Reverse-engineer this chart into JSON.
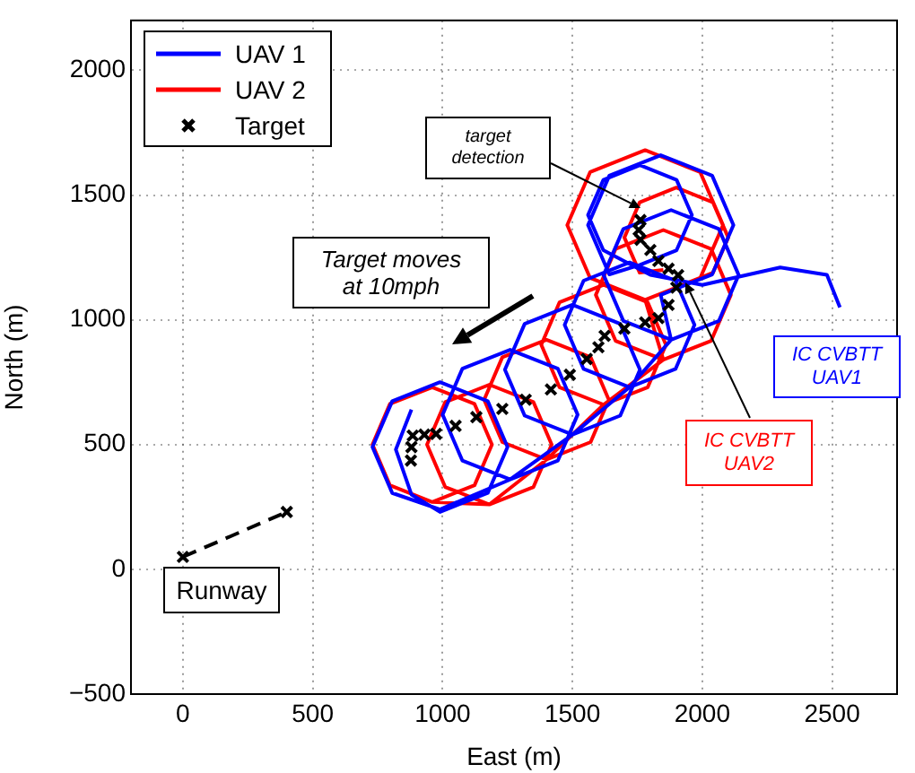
{
  "chart_data": {
    "type": "line",
    "xlabel": "East (m)",
    "ylabel": "North (m)",
    "xlim": [
      -200,
      2750
    ],
    "ylim": [
      -500,
      2200
    ],
    "xticks": [
      0,
      500,
      1000,
      1500,
      2000,
      2500
    ],
    "yticks": [
      -500,
      0,
      500,
      1000,
      1500,
      2000
    ],
    "grid": true,
    "legend": "top left",
    "series": [
      {
        "name": "UAV 1",
        "color": "#0000ff",
        "marker": "none",
        "line_style": "solid",
        "x": [
          880,
          820,
          880,
          990,
          1174,
          1250,
          1174,
          990,
          806,
          730,
          806,
          990,
          1260,
          1444,
          1520,
          1444,
          1260,
          1076,
          1000,
          1076,
          1260,
          1500,
          1684,
          1760,
          1684,
          1500,
          1316,
          1240,
          1316,
          1500,
          1720,
          1897,
          1970,
          1897,
          1720,
          1543,
          1470,
          1543,
          1720,
          1880,
          2064,
          2140,
          2064,
          1880,
          1696,
          1620,
          1696,
          1880,
          1840,
          2038,
          2120,
          2038,
          1840,
          1642,
          1560,
          1642,
          1760,
          1901,
          1960,
          1901,
          1760,
          1619,
          1560,
          1619,
          1800,
          2000,
          2300,
          2480,
          2530
        ],
        "values": [
          640,
          480,
          300,
          230,
          306,
          490,
          674,
          750,
          674,
          490,
          306,
          240,
          360,
          436,
          620,
          804,
          880,
          804,
          620,
          436,
          360,
          540,
          616,
          800,
          984,
          1060,
          984,
          800,
          616,
          540,
          730,
          803,
          980,
          1157,
          1230,
          1157,
          980,
          803,
          730,
          920,
          996,
          1180,
          1364,
          1440,
          1364,
          1180,
          996,
          920,
          1100,
          1182,
          1380,
          1578,
          1660,
          1578,
          1380,
          1182,
          1220,
          1279,
          1420,
          1561,
          1620,
          1561,
          1420,
          1279,
          1180,
          1140,
          1210,
          1180,
          1050
        ]
      },
      {
        "name": "UAV 2",
        "color": "#ff0000",
        "marker": "none",
        "line_style": "solid",
        "x": [
          960,
          1123,
          1190,
          1123,
          960,
          797,
          730,
          797,
          960,
          1180,
          1350,
          1420,
          1350,
          1180,
          1010,
          940,
          1010,
          1180,
          1400,
          1570,
          1640,
          1570,
          1400,
          1230,
          1160,
          1230,
          1400,
          1620,
          1790,
          1860,
          1790,
          1620,
          1450,
          1380,
          1450,
          1620,
          1850,
          2034,
          2110,
          2034,
          1850,
          1666,
          1590,
          1666,
          1850,
          1780,
          1992,
          2080,
          1992,
          1780,
          1568,
          1480,
          1568,
          1780,
          1900,
          2041,
          2100,
          2041,
          1900,
          1759,
          1700,
          1759,
          1850
        ],
        "values": [
          270,
          337,
          500,
          663,
          730,
          663,
          500,
          337,
          270,
          260,
          330,
          500,
          670,
          740,
          670,
          500,
          330,
          260,
          440,
          510,
          680,
          850,
          920,
          850,
          680,
          510,
          440,
          660,
          730,
          900,
          1070,
          1140,
          1070,
          900,
          730,
          660,
          840,
          916,
          1100,
          1284,
          1360,
          1284,
          1100,
          916,
          840,
          1080,
          1168,
          1380,
          1592,
          1680,
          1592,
          1380,
          1168,
          1080,
          1130,
          1189,
          1330,
          1471,
          1530,
          1471,
          1330,
          1189,
          1200
        ]
      },
      {
        "name": "Target",
        "type": "scatter",
        "color": "#000000",
        "marker": "cross",
        "x": [
          878,
          880,
          885,
          930,
          975,
          1050,
          1130,
          1230,
          1320,
          1417,
          1490,
          1555,
          1600,
          1624,
          1700,
          1780,
          1831,
          1870,
          1900,
          1907,
          1870,
          1831,
          1800,
          1762,
          1755,
          1762
        ],
        "values": [
          436,
          490,
          536,
          540,
          543,
          575,
          610,
          643,
          680,
          721,
          780,
          843,
          890,
          936,
          965,
          990,
          1007,
          1060,
          1129,
          1179,
          1205,
          1236,
          1280,
          1321,
          1360,
          1400
        ]
      },
      {
        "type": "line",
        "color": "#000000",
        "marker": "cross",
        "line_style": "dashed",
        "x": [
          0,
          400
        ],
        "values": [
          50,
          230
        ]
      }
    ],
    "annotations": [
      "target\ndetection",
      "Target moves\nat 10mph",
      "IC CVBTT\nUAV1",
      {
        "text": "IC CVBTT\nUAV2",
        "x": 1935,
        "y": 1150
      },
      "Runway"
    ]
  }
}
